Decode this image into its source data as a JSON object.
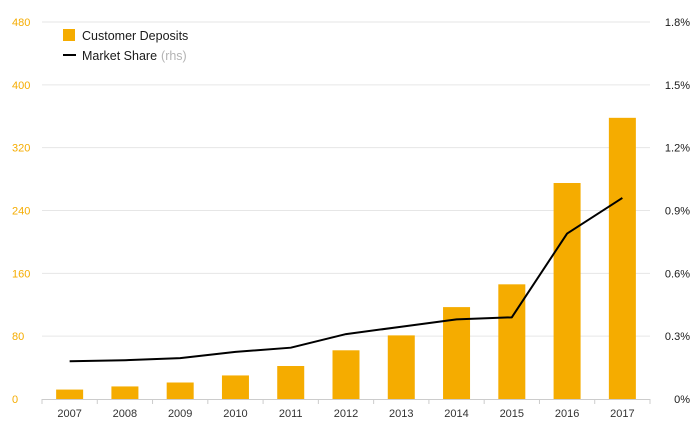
{
  "chart_data": {
    "type": "bar",
    "categories": [
      "2007",
      "2008",
      "2009",
      "2010",
      "2011",
      "2012",
      "2013",
      "2014",
      "2015",
      "2016",
      "2017"
    ],
    "series": [
      {
        "name": "Customer Deposits",
        "type": "bar",
        "axis": "left",
        "color": "#f5ac00",
        "values": [
          12,
          16,
          21,
          30,
          42,
          62,
          81,
          117,
          146,
          275,
          358
        ]
      },
      {
        "name": "Market Share",
        "name_note": "(rhs)",
        "type": "line",
        "axis": "right",
        "color": "#000000",
        "values": [
          0.18,
          0.185,
          0.195,
          0.225,
          0.245,
          0.31,
          0.345,
          0.38,
          0.39,
          0.79,
          0.96
        ]
      }
    ],
    "y_left": {
      "ylim": [
        0,
        480
      ],
      "ticks": [
        0,
        80,
        160,
        240,
        320,
        400,
        480
      ],
      "tick_labels": [
        "0",
        "80",
        "160",
        "240",
        "320",
        "400",
        "480"
      ],
      "color": "#f5ac00"
    },
    "y_right": {
      "ylim": [
        0,
        1.8
      ],
      "ticks": [
        0,
        0.3,
        0.6,
        0.9,
        1.2,
        1.5,
        1.8
      ],
      "tick_labels": [
        "0%",
        "0.3%",
        "0.6%",
        "0.9%",
        "1.2%",
        "1.5%",
        "1.8%"
      ],
      "color": "#1a1a1a"
    },
    "xlabel": "",
    "ylabel": "",
    "title": "",
    "grid": true,
    "legend_position": "top-left"
  }
}
